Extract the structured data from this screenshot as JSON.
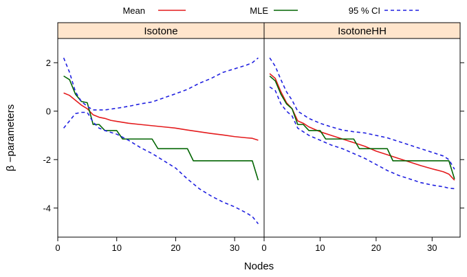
{
  "chart_data": {
    "type": "line",
    "xlabel": "Nodes",
    "ylabel": "β −parameters",
    "xlim": [
      0,
      35
    ],
    "ylim": [
      -5.2,
      3.0
    ],
    "x_ticks": [
      0,
      10,
      20,
      30
    ],
    "y_ticks": [
      2,
      0,
      -2,
      -4
    ],
    "grid": false,
    "legend_position": "top",
    "legend": [
      {
        "key": "mean",
        "label": "Mean",
        "color": "#e41a1c",
        "dash": "solid"
      },
      {
        "key": "mle",
        "label": "MLE",
        "color": "#006400",
        "dash": "solid"
      },
      {
        "key": "ci",
        "label": "95 % CI",
        "color": "#1f1fe0",
        "dash": "dashed"
      }
    ],
    "panels": [
      {
        "title": "Isotone",
        "series": [
          {
            "name": "Mean",
            "key": "mean",
            "points": [
              [
                1,
                0.75
              ],
              [
                2,
                0.65
              ],
              [
                3,
                0.45
              ],
              [
                4,
                0.25
              ],
              [
                5,
                0.1
              ],
              [
                6,
                -0.15
              ],
              [
                7,
                -0.25
              ],
              [
                8,
                -0.3
              ],
              [
                9,
                -0.38
              ],
              [
                10,
                -0.42
              ],
              [
                12,
                -0.5
              ],
              [
                14,
                -0.55
              ],
              [
                16,
                -0.6
              ],
              [
                18,
                -0.65
              ],
              [
                20,
                -0.7
              ],
              [
                22,
                -0.78
              ],
              [
                24,
                -0.85
              ],
              [
                26,
                -0.92
              ],
              [
                28,
                -0.98
              ],
              [
                30,
                -1.05
              ],
              [
                32,
                -1.1
              ],
              [
                33,
                -1.12
              ],
              [
                34,
                -1.2
              ]
            ]
          },
          {
            "name": "MLE",
            "key": "mle",
            "points": [
              [
                1,
                1.45
              ],
              [
                2,
                1.3
              ],
              [
                3,
                0.7
              ],
              [
                4,
                0.4
              ],
              [
                5,
                0.35
              ],
              [
                6,
                -0.55
              ],
              [
                7,
                -0.55
              ],
              [
                8,
                -0.8
              ],
              [
                9,
                -0.8
              ],
              [
                10,
                -0.8
              ],
              [
                11,
                -1.15
              ],
              [
                16,
                -1.15
              ],
              [
                17,
                -1.55
              ],
              [
                22,
                -1.55
              ],
              [
                23,
                -2.05
              ],
              [
                33,
                -2.05
              ],
              [
                34,
                -2.85
              ]
            ]
          },
          {
            "name": "95 % CI upper",
            "key": "ci",
            "points": [
              [
                1,
                2.2
              ],
              [
                2,
                1.6
              ],
              [
                3,
                0.8
              ],
              [
                4,
                0.4
              ],
              [
                5,
                0.2
              ],
              [
                6,
                0.05
              ],
              [
                8,
                0.05
              ],
              [
                10,
                0.12
              ],
              [
                12,
                0.2
              ],
              [
                14,
                0.3
              ],
              [
                16,
                0.38
              ],
              [
                18,
                0.55
              ],
              [
                20,
                0.72
              ],
              [
                22,
                0.9
              ],
              [
                24,
                1.15
              ],
              [
                26,
                1.35
              ],
              [
                28,
                1.6
              ],
              [
                30,
                1.75
              ],
              [
                32,
                1.9
              ],
              [
                33,
                2.0
              ],
              [
                34,
                2.2
              ]
            ]
          },
          {
            "name": "95 % CI lower",
            "key": "ci",
            "points": [
              [
                1,
                -0.7
              ],
              [
                2,
                -0.4
              ],
              [
                3,
                -0.1
              ],
              [
                4,
                -0.05
              ],
              [
                5,
                -0.05
              ],
              [
                6,
                -0.45
              ],
              [
                7,
                -0.7
              ],
              [
                8,
                -0.8
              ],
              [
                10,
                -0.95
              ],
              [
                12,
                -1.2
              ],
              [
                14,
                -1.5
              ],
              [
                16,
                -1.75
              ],
              [
                18,
                -2.05
              ],
              [
                20,
                -2.35
              ],
              [
                22,
                -2.8
              ],
              [
                24,
                -3.2
              ],
              [
                26,
                -3.5
              ],
              [
                28,
                -3.75
              ],
              [
                30,
                -3.95
              ],
              [
                32,
                -4.2
              ],
              [
                33,
                -4.35
              ],
              [
                34,
                -4.65
              ]
            ]
          }
        ]
      },
      {
        "title": "IsotoneHH",
        "series": [
          {
            "name": "Mean",
            "key": "mean",
            "points": [
              [
                1,
                1.55
              ],
              [
                2,
                1.35
              ],
              [
                3,
                0.8
              ],
              [
                4,
                0.35
              ],
              [
                5,
                0.1
              ],
              [
                6,
                -0.4
              ],
              [
                7,
                -0.5
              ],
              [
                8,
                -0.65
              ],
              [
                9,
                -0.75
              ],
              [
                10,
                -0.85
              ],
              [
                12,
                -1.0
              ],
              [
                14,
                -1.15
              ],
              [
                16,
                -1.3
              ],
              [
                18,
                -1.45
              ],
              [
                20,
                -1.65
              ],
              [
                22,
                -1.8
              ],
              [
                24,
                -1.95
              ],
              [
                26,
                -2.1
              ],
              [
                28,
                -2.25
              ],
              [
                30,
                -2.38
              ],
              [
                32,
                -2.5
              ],
              [
                33,
                -2.6
              ],
              [
                34,
                -2.85
              ]
            ]
          },
          {
            "name": "MLE",
            "key": "mle",
            "points": [
              [
                1,
                1.45
              ],
              [
                2,
                1.25
              ],
              [
                3,
                0.7
              ],
              [
                4,
                0.3
              ],
              [
                5,
                0.1
              ],
              [
                6,
                -0.55
              ],
              [
                7,
                -0.55
              ],
              [
                8,
                -0.8
              ],
              [
                10,
                -0.8
              ],
              [
                11,
                -1.15
              ],
              [
                16,
                -1.15
              ],
              [
                17,
                -1.55
              ],
              [
                22,
                -1.55
              ],
              [
                23,
                -2.05
              ],
              [
                33,
                -2.05
              ],
              [
                34,
                -2.8
              ]
            ]
          },
          {
            "name": "95 % CI upper",
            "key": "ci",
            "points": [
              [
                1,
                2.2
              ],
              [
                2,
                1.85
              ],
              [
                3,
                1.3
              ],
              [
                4,
                0.8
              ],
              [
                5,
                0.45
              ],
              [
                6,
                0.0
              ],
              [
                8,
                -0.3
              ],
              [
                10,
                -0.5
              ],
              [
                12,
                -0.65
              ],
              [
                14,
                -0.78
              ],
              [
                16,
                -0.85
              ],
              [
                18,
                -0.9
              ],
              [
                20,
                -1.0
              ],
              [
                22,
                -1.1
              ],
              [
                24,
                -1.25
              ],
              [
                26,
                -1.4
              ],
              [
                28,
                -1.55
              ],
              [
                30,
                -1.7
              ],
              [
                32,
                -1.85
              ],
              [
                33,
                -2.0
              ],
              [
                34,
                -2.4
              ]
            ]
          },
          {
            "name": "95 % CI lower",
            "key": "ci",
            "points": [
              [
                1,
                1.0
              ],
              [
                2,
                0.85
              ],
              [
                3,
                0.3
              ],
              [
                4,
                0.0
              ],
              [
                5,
                -0.2
              ],
              [
                6,
                -0.7
              ],
              [
                8,
                -1.0
              ],
              [
                10,
                -1.2
              ],
              [
                12,
                -1.4
              ],
              [
                14,
                -1.55
              ],
              [
                16,
                -1.75
              ],
              [
                18,
                -1.95
              ],
              [
                20,
                -2.2
              ],
              [
                22,
                -2.45
              ],
              [
                24,
                -2.65
              ],
              [
                26,
                -2.8
              ],
              [
                28,
                -2.95
              ],
              [
                30,
                -3.05
              ],
              [
                32,
                -3.12
              ],
              [
                33,
                -3.18
              ],
              [
                34,
                -3.2
              ]
            ]
          }
        ]
      }
    ]
  }
}
